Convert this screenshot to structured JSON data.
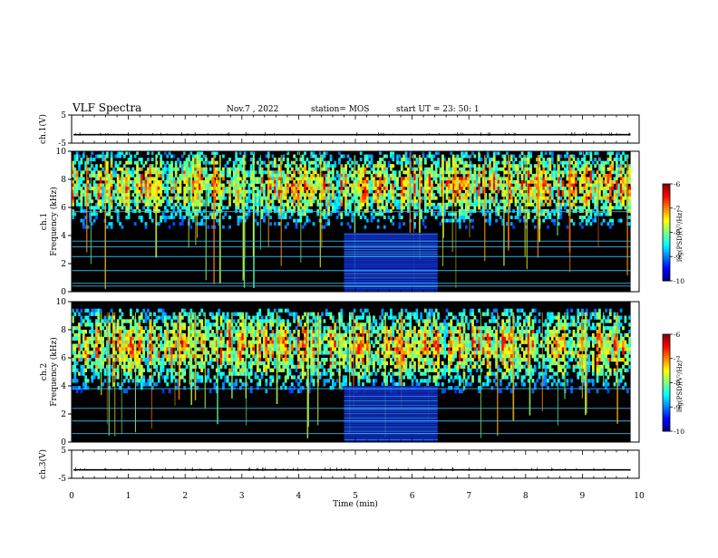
{
  "header": {
    "title": "VLF Spectra",
    "date": "Nov.7 , 2022",
    "station": "station= MOS",
    "start": "start UT = 23: 50: 1"
  },
  "chart_data": [
    {
      "type": "line",
      "name": "ch1-waveform",
      "ylabel": "ch.1(V)",
      "ylim": [
        -5,
        5
      ],
      "yticks": [
        "5",
        "-5"
      ],
      "baseline": -2
    },
    {
      "type": "heatmap",
      "name": "ch1-spectrogram",
      "ylabel": "ch.1 Frequency (kHz)",
      "ylim": [
        0,
        10
      ],
      "yticks": [
        "0",
        "2",
        "4",
        "6",
        "8",
        "10"
      ],
      "colorbar": {
        "label": "log(PSD)(V²/Hz)",
        "range": [
          -10,
          -6
        ],
        "ticks": [
          "-6",
          "-7",
          "-8",
          "-9",
          "-10"
        ]
      },
      "band": {
        "from": -9.5,
        "to": -6.5,
        "fmin": 4.5,
        "fmax": 10
      },
      "block": {
        "tmin": 4.8,
        "tmax": 6.45,
        "fmin": 0,
        "fmax": 4.2
      },
      "lines_khz": [
        0.4,
        0.6,
        1.5,
        2.5,
        3.2,
        3.6,
        5.7
      ]
    },
    {
      "type": "heatmap",
      "name": "ch2-spectrogram",
      "ylabel": "ch.2 Frequency (kHz)",
      "ylim": [
        0,
        10
      ],
      "yticks": [
        "0",
        "2",
        "4",
        "6",
        "8",
        "10"
      ],
      "colorbar": {
        "label": "log(PSD)(V²/Hz)",
        "range": [
          -10,
          -6
        ],
        "ticks": [
          "-6",
          "-7",
          "-8",
          "-9",
          "-10"
        ]
      },
      "band": {
        "from": -9.5,
        "to": -6.5,
        "fmin": 3.5,
        "fmax": 9.5
      },
      "block": {
        "tmin": 4.8,
        "tmax": 6.45,
        "fmin": 0,
        "fmax": 4
      },
      "lines_khz": [
        0.6,
        1.5,
        2.4,
        3.8
      ]
    },
    {
      "type": "line",
      "name": "ch3-waveform",
      "ylabel": "ch.3(V)",
      "ylim": [
        -5,
        5
      ],
      "yticks": [
        "5",
        "-5"
      ],
      "baseline": -2
    }
  ],
  "xaxis": {
    "label": "Time (min)",
    "range": [
      0,
      10
    ],
    "ticks": [
      "0",
      "1",
      "2",
      "3",
      "4",
      "5",
      "6",
      "7",
      "8",
      "9",
      "10"
    ],
    "data_end": 9.85
  }
}
